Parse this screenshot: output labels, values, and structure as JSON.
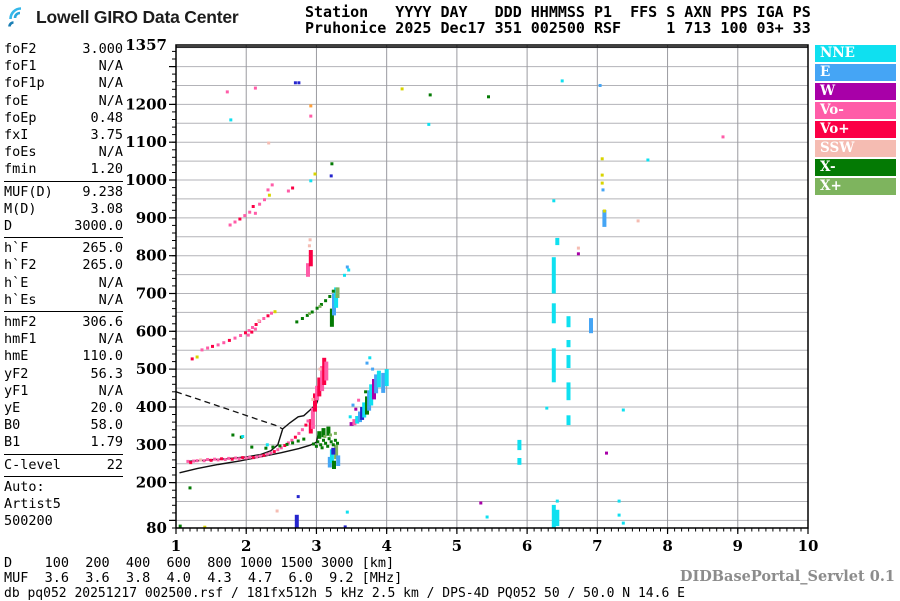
{
  "header": {
    "logo_text": "Lowell GIRO Data Center",
    "station_line1": "Station   YYYY DAY   DDD HHMMSS P1  FFS S AXN PPS IGA PS",
    "station_line2": "Pruhonice 2025 Dec17 351 002500 RSF     1 713 100 03+ 33"
  },
  "left_panel": {
    "sections": [
      {
        "rows": [
          {
            "label": "foF2",
            "value": "3.000"
          },
          {
            "label": "foF1",
            "value": "N/A"
          },
          {
            "label": "foF1p",
            "value": "N/A"
          },
          {
            "label": "foE",
            "value": "N/A"
          },
          {
            "label": "foEp",
            "value": "0.48"
          },
          {
            "label": "fxI",
            "value": "3.75"
          },
          {
            "label": "foEs",
            "value": "N/A"
          },
          {
            "label": "fmin",
            "value": "1.20"
          }
        ]
      },
      {
        "rows": [
          {
            "label": "MUF(D)",
            "value": "9.238"
          },
          {
            "label": "M(D)",
            "value": "3.08"
          },
          {
            "label": "D",
            "value": "3000.0"
          }
        ]
      },
      {
        "rows": [
          {
            "label": "h`F",
            "value": "265.0"
          },
          {
            "label": "h`F2",
            "value": "265.0"
          },
          {
            "label": "h`E",
            "value": "N/A"
          },
          {
            "label": "h`Es",
            "value": "N/A"
          }
        ]
      },
      {
        "rows": [
          {
            "label": "hmF2",
            "value": "306.6"
          },
          {
            "label": "hmF1",
            "value": "N/A"
          },
          {
            "label": "hmE",
            "value": "110.0"
          },
          {
            "label": "yF2",
            "value": "56.3"
          },
          {
            "label": "yF1",
            "value": "N/A"
          },
          {
            "label": "yE",
            "value": "20.0"
          },
          {
            "label": "B0",
            "value": "58.0"
          },
          {
            "label": "B1",
            "value": "1.79"
          }
        ]
      },
      {
        "rows": [
          {
            "label": "C-level",
            "value": "22"
          }
        ]
      },
      {
        "noline": true,
        "rows": [
          {
            "label": "Auto:",
            "value": ""
          },
          {
            "label": "Artist5",
            "value": ""
          },
          {
            "label": "500200",
            "value": ""
          }
        ]
      }
    ]
  },
  "legend": {
    "items": [
      {
        "label": "NNE",
        "key": "NNE"
      },
      {
        "label": "E",
        "key": "E"
      },
      {
        "label": "W",
        "key": "W"
      },
      {
        "label": "Vo-",
        "key": "Vo-"
      },
      {
        "label": "Vo+",
        "key": "Vo+"
      },
      {
        "label": "SSW",
        "key": "SSW"
      },
      {
        "label": "X-",
        "key": "X-"
      },
      {
        "label": "X+",
        "key": "X+"
      }
    ]
  },
  "bottom": {
    "d_row": "D    100  200  400  600  800 1000 1500 3000 [km]",
    "muf_row": "MUF  3.6  3.6  3.8  4.0  4.3  4.7  6.0  9.2 [MHz]",
    "status": "db pq052 20251217 002500.rsf / 181fx512h 5 kHz 2.5 km / DPS-4D PQ052 50 / 50.0 N 14.6 E",
    "servlet": "DIDBasePortal_Servlet 0.1"
  },
  "chart_data": {
    "type": "scatter",
    "title": "",
    "x_axis": {
      "label": "[MHz]",
      "min": 1,
      "max": 10,
      "ticks": [
        1,
        2,
        3,
        4,
        5,
        6,
        7,
        8,
        9,
        10
      ],
      "minor_step": 0.1
    },
    "y_axis": {
      "label": "[km]",
      "min": 80,
      "max": 1357,
      "tick_labels": [
        1357,
        1200,
        1100,
        1000,
        900,
        800,
        700,
        600,
        500,
        400,
        300,
        200,
        80
      ],
      "minor_step": 20
    },
    "grid": {
      "h_step_km": 50,
      "v_step_mhz": 1,
      "color": "#b3b3b8"
    },
    "palette": {
      "NNE": "#0fe0f0",
      "E": "#45a5f5",
      "W": "#a800a8",
      "Vo-": "#ff5ca8",
      "Vo+": "#fb0045",
      "SSW": "#f5bcb2",
      "X-": "#047a04",
      "X+": "#7eb45e",
      "navy": "#2525cd",
      "yellow": "#d8d400",
      "orange": "#ffa13c"
    },
    "lines": {
      "dashed": [
        [
          1.0,
          440
        ],
        [
          1.34,
          419
        ],
        [
          1.77,
          392
        ],
        [
          2.15,
          368
        ],
        [
          2.41,
          352
        ],
        [
          2.52,
          342
        ]
      ],
      "trace": [
        [
          1.15,
          256
        ],
        [
          1.4,
          259
        ],
        [
          1.7,
          263
        ],
        [
          2.0,
          268
        ],
        [
          2.2,
          274
        ],
        [
          2.35,
          284
        ],
        [
          2.45,
          300
        ],
        [
          2.52,
          342
        ],
        [
          2.62,
          358
        ],
        [
          2.74,
          374
        ],
        [
          2.82,
          377
        ],
        [
          2.91,
          392
        ],
        [
          3.0,
          408
        ],
        [
          3.02,
          418
        ]
      ],
      "profile": [
        [
          1.05,
          226
        ],
        [
          1.3,
          237
        ],
        [
          1.6,
          248
        ],
        [
          1.9,
          257
        ],
        [
          2.2,
          268
        ],
        [
          2.5,
          279
        ],
        [
          2.75,
          290
        ],
        [
          2.91,
          299
        ],
        [
          3.0,
          307
        ],
        [
          3.03,
          332
        ]
      ]
    },
    "points": [
      [
        1.17,
        256,
        "Vo-"
      ],
      [
        1.21,
        253,
        "Vo+"
      ],
      [
        1.25,
        257,
        "Vo-"
      ],
      [
        1.3,
        258,
        "Vo-"
      ],
      [
        1.35,
        260,
        "SSW"
      ],
      [
        1.4,
        258,
        "Vo-"
      ],
      [
        1.45,
        261,
        "Vo-"
      ],
      [
        1.5,
        259,
        "Vo+"
      ],
      [
        1.55,
        262,
        "Vo-"
      ],
      [
        1.6,
        260,
        "Vo-"
      ],
      [
        1.65,
        263,
        "Vo+"
      ],
      [
        1.7,
        261,
        "Vo-"
      ],
      [
        1.75,
        264,
        "Vo-"
      ],
      [
        1.8,
        262,
        "Vo+"
      ],
      [
        1.85,
        265,
        "Vo-"
      ],
      [
        1.9,
        263,
        "Vo-"
      ],
      [
        1.95,
        266,
        "Vo+"
      ],
      [
        2.0,
        265,
        "Vo-"
      ],
      [
        2.05,
        267,
        "Vo-"
      ],
      [
        2.1,
        266,
        "Vo+"
      ],
      [
        2.15,
        268,
        "Vo-"
      ],
      [
        2.2,
        270,
        "Vo-"
      ],
      [
        2.25,
        272,
        "Vo+"
      ],
      [
        2.3,
        275,
        "Vo-"
      ],
      [
        2.35,
        278,
        "Vo-"
      ],
      [
        2.4,
        282,
        "Vo+"
      ],
      [
        2.45,
        287,
        "Vo-"
      ],
      [
        2.5,
        292,
        "Vo-"
      ],
      [
        2.55,
        298,
        "Vo+"
      ],
      [
        2.6,
        305,
        "Vo-"
      ],
      [
        2.65,
        312,
        "Vo-"
      ],
      [
        2.7,
        320,
        "Vo+"
      ],
      [
        2.75,
        330,
        "Vo-"
      ],
      [
        2.8,
        340,
        "Vo-"
      ],
      [
        2.85,
        352,
        "Vo+"
      ],
      [
        2.88,
        363,
        "Vo-"
      ],
      [
        1.81,
        326,
        "X-"
      ],
      [
        1.93,
        320,
        "X-"
      ],
      [
        1.95,
        322,
        "NNE"
      ],
      [
        2.3,
        300,
        "NNE"
      ],
      [
        2.08,
        294,
        "X-"
      ],
      [
        2.28,
        291,
        "X-"
      ],
      [
        2.38,
        294,
        "X-"
      ],
      [
        2.48,
        297,
        "X-"
      ],
      [
        2.58,
        301,
        "X-"
      ],
      [
        2.66,
        305,
        "X-"
      ],
      [
        2.74,
        310,
        "X-"
      ],
      [
        2.82,
        315,
        "X-"
      ],
      [
        2.96,
        302,
        "X-"
      ],
      [
        3.0,
        296,
        "X-"
      ],
      [
        3.02,
        308,
        "X-"
      ],
      [
        3.06,
        300,
        "X-"
      ],
      [
        3.08,
        292,
        "X-"
      ],
      [
        3.1,
        312,
        "X-"
      ],
      [
        3.13,
        304,
        "X-"
      ],
      [
        3.16,
        296,
        "X-"
      ],
      [
        3.18,
        316,
        "X-"
      ],
      [
        3.21,
        308,
        "X-"
      ],
      [
        3.24,
        300,
        "X-"
      ],
      [
        3.27,
        312,
        "X-"
      ],
      [
        3.3,
        304,
        "X-"
      ],
      [
        3.12,
        322,
        "X+"
      ],
      [
        3.2,
        326,
        "X+"
      ],
      [
        3.27,
        330,
        "X+"
      ],
      [
        2.95,
        420,
        "SSW"
      ],
      [
        3.05,
        500,
        "SSW"
      ],
      [
        3.48,
        374,
        "NNE"
      ],
      [
        3.52,
        405,
        "E"
      ],
      [
        3.56,
        394,
        "W"
      ],
      [
        3.6,
        418,
        "Vo-"
      ],
      [
        3.7,
        440,
        "X-"
      ],
      [
        3.8,
        500,
        "E"
      ],
      [
        3.76,
        530,
        "NNE"
      ],
      [
        3.72,
        516,
        "E"
      ],
      [
        1.23,
        527,
        "Vo+"
      ],
      [
        1.3,
        532,
        "yellow"
      ],
      [
        1.37,
        551,
        "Vo-"
      ],
      [
        1.45,
        556,
        "Vo-"
      ],
      [
        1.52,
        560,
        "Vo+"
      ],
      [
        1.6,
        564,
        "Vo-"
      ],
      [
        1.68,
        570,
        "Vo-"
      ],
      [
        1.76,
        576,
        "Vo+"
      ],
      [
        1.84,
        582,
        "Vo-"
      ],
      [
        1.92,
        589,
        "Vo-"
      ],
      [
        1.99,
        596,
        "Vo+"
      ],
      [
        2.04,
        602,
        "Vo-"
      ],
      [
        2.09,
        610,
        "Vo-"
      ],
      [
        2.14,
        618,
        "Vo+"
      ],
      [
        2.19,
        626,
        "Vo-"
      ],
      [
        2.25,
        634,
        "Vo-"
      ],
      [
        2.31,
        641,
        "Vo+"
      ],
      [
        2.36,
        648,
        "Vo-"
      ],
      [
        2.41,
        652,
        "yellow"
      ],
      [
        2.03,
        590,
        "Vo-"
      ],
      [
        2.08,
        598,
        "Vo+"
      ],
      [
        2.13,
        606,
        "Vo-"
      ],
      [
        2.18,
        628,
        "SSW"
      ],
      [
        2.72,
        625,
        "X-"
      ],
      [
        2.8,
        634,
        "X-"
      ],
      [
        2.87,
        642,
        "X-"
      ],
      [
        2.94,
        651,
        "X-"
      ],
      [
        3.01,
        661,
        "X-"
      ],
      [
        3.07,
        671,
        "X-"
      ],
      [
        3.13,
        681,
        "X-"
      ],
      [
        3.19,
        692,
        "X-"
      ],
      [
        3.24,
        706,
        "X-"
      ],
      [
        2.9,
        647,
        "X+"
      ],
      [
        3.05,
        666,
        "X+"
      ],
      [
        3.4,
        748,
        "NNE"
      ],
      [
        3.46,
        762,
        "NNE"
      ],
      [
        3.44,
        770,
        "E"
      ],
      [
        2.9,
        826,
        "SSW"
      ],
      [
        2.91,
        842,
        "SSW"
      ],
      [
        1.77,
        881,
        "Vo-"
      ],
      [
        1.84,
        889,
        "Vo-"
      ],
      [
        1.91,
        897,
        "Vo+"
      ],
      [
        1.98,
        906,
        "Vo-"
      ],
      [
        2.05,
        915,
        "Vo-"
      ],
      [
        2.1,
        930,
        "Vo+"
      ],
      [
        2.13,
        912,
        "Vo-"
      ],
      [
        2.19,
        936,
        "Vo-"
      ],
      [
        2.26,
        948,
        "Vo-"
      ],
      [
        2.31,
        974,
        "Vo-"
      ],
      [
        2.33,
        960,
        "yellow"
      ],
      [
        2.37,
        987,
        "Vo-"
      ],
      [
        2.6,
        971,
        "Vo-"
      ],
      [
        2.66,
        979,
        "Vo+"
      ],
      [
        2.7,
        1257,
        "navy"
      ],
      [
        2.75,
        1257,
        "navy"
      ],
      [
        1.73,
        1233,
        "Vo-"
      ],
      [
        2.13,
        1243,
        "Vo-"
      ],
      [
        2.92,
        1196,
        "orange"
      ],
      [
        2.92,
        1169,
        "Vo-"
      ],
      [
        1.78,
        1159,
        "NNE"
      ],
      [
        2.32,
        1098,
        "SSW"
      ],
      [
        4.22,
        1241,
        "yellow"
      ],
      [
        3.22,
        1043,
        "X-"
      ],
      [
        3.21,
        1011,
        "navy"
      ],
      [
        2.98,
        1016,
        "yellow"
      ],
      [
        2.92,
        998,
        "NNE"
      ],
      [
        4.62,
        1225,
        "X-"
      ],
      [
        4.6,
        1147,
        "NNE"
      ],
      [
        5.45,
        1220,
        "X-"
      ],
      [
        6.5,
        1262,
        "NNE"
      ],
      [
        7.04,
        1250,
        "E"
      ],
      [
        7.72,
        1053,
        "NNE"
      ],
      [
        8.79,
        1114,
        "Vo-"
      ],
      [
        6.38,
        945,
        "NNE"
      ],
      [
        7.07,
        1056,
        "yellow"
      ],
      [
        7.07,
        1013,
        "yellow"
      ],
      [
        7.07,
        992,
        "yellow"
      ],
      [
        7.08,
        974,
        "E"
      ],
      [
        7.1,
        918,
        "yellow"
      ],
      [
        6.73,
        820,
        "SSW"
      ],
      [
        6.73,
        805,
        "W"
      ],
      [
        7.58,
        892,
        "SSW"
      ],
      [
        6.28,
        397,
        "NNE"
      ],
      [
        7.37,
        392,
        "NNE"
      ],
      [
        7.13,
        278,
        "W"
      ],
      [
        5.34,
        146,
        "W"
      ],
      [
        5.43,
        109,
        "NNE"
      ],
      [
        6.43,
        151,
        "NNE"
      ],
      [
        7.31,
        151,
        "NNE"
      ],
      [
        7.31,
        114,
        "NNE"
      ],
      [
        7.37,
        93,
        "NNE"
      ],
      [
        2.74,
        163,
        "navy"
      ],
      [
        2.44,
        125,
        "SSW"
      ],
      [
        3.44,
        122,
        "NNE"
      ],
      [
        3.41,
        83,
        "navy"
      ],
      [
        1.06,
        85,
        "X-"
      ],
      [
        1.41,
        82,
        "yellow"
      ],
      [
        1.2,
        186,
        "X-"
      ]
    ],
    "bars": [
      [
        3.04,
        316,
        336,
        "X-"
      ],
      [
        3.1,
        320,
        344,
        "X-"
      ],
      [
        3.17,
        324,
        348,
        "X-"
      ],
      [
        3.19,
        240,
        268,
        "E"
      ],
      [
        3.22,
        252,
        288,
        "NNE"
      ],
      [
        3.25,
        236,
        258,
        "X-"
      ],
      [
        3.28,
        262,
        300,
        "X+"
      ],
      [
        3.31,
        244,
        272,
        "E"
      ],
      [
        3.24,
        274,
        292,
        "navy"
      ],
      [
        2.92,
        330,
        368,
        "Vo+"
      ],
      [
        2.95,
        342,
        398,
        "Vo-"
      ],
      [
        2.98,
        388,
        436,
        "Vo+"
      ],
      [
        3.01,
        418,
        456,
        "Vo-"
      ],
      [
        3.04,
        428,
        478,
        "Vo+"
      ],
      [
        3.08,
        442,
        508,
        "Vo-"
      ],
      [
        3.11,
        458,
        530,
        "Vo+"
      ],
      [
        3.14,
        470,
        520,
        "Vo-"
      ],
      [
        3.5,
        350,
        360,
        "W"
      ],
      [
        3.54,
        352,
        368,
        "Vo-"
      ],
      [
        3.58,
        356,
        376,
        "NNE"
      ],
      [
        3.62,
        360,
        388,
        "E"
      ],
      [
        3.65,
        366,
        400,
        "navy"
      ],
      [
        3.68,
        372,
        412,
        "NNE"
      ],
      [
        3.72,
        380,
        428,
        "X-"
      ],
      [
        3.75,
        390,
        444,
        "E"
      ],
      [
        3.78,
        404,
        460,
        "NNE"
      ],
      [
        3.82,
        420,
        474,
        "W"
      ],
      [
        3.85,
        436,
        486,
        "E"
      ],
      [
        3.89,
        452,
        496,
        "NNE"
      ],
      [
        3.95,
        437,
        490,
        "E"
      ],
      [
        4.0,
        455,
        500,
        "NNE"
      ],
      [
        3.22,
        612,
        660,
        "X-"
      ],
      [
        3.25,
        642,
        700,
        "E"
      ],
      [
        3.28,
        662,
        716,
        "NNE"
      ],
      [
        3.3,
        688,
        716,
        "X+"
      ],
      [
        2.88,
        744,
        780,
        "Vo-"
      ],
      [
        2.92,
        772,
        815,
        "Vo+"
      ],
      [
        6.38,
        700,
        796,
        "NNE"
      ],
      [
        6.43,
        828,
        847,
        "NNE"
      ],
      [
        6.38,
        621,
        674,
        "NNE"
      ],
      [
        6.38,
        465,
        555,
        "NNE"
      ],
      [
        6.59,
        611,
        640,
        "NNE"
      ],
      [
        6.59,
        558,
        577,
        "NNE"
      ],
      [
        6.59,
        503,
        537,
        "NNE"
      ],
      [
        6.59,
        418,
        465,
        "NNE"
      ],
      [
        6.59,
        352,
        378,
        "NNE"
      ],
      [
        6.91,
        595,
        635,
        "E"
      ],
      [
        7.1,
        876,
        921,
        "E"
      ],
      [
        5.89,
        286,
        313,
        "NNE"
      ],
      [
        5.89,
        247,
        265,
        "NNE"
      ],
      [
        6.38,
        80,
        141,
        "NNE"
      ],
      [
        6.43,
        85,
        128,
        "NNE"
      ],
      [
        2.72,
        80,
        115,
        "navy"
      ]
    ]
  }
}
